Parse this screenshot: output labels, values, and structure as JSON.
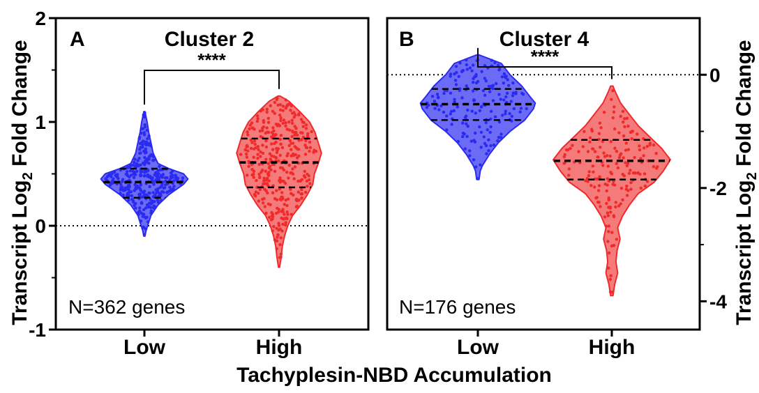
{
  "figure": {
    "shared_xlabel": "Tachyplesin-NBD Accumulation",
    "left_ylabel_main": "Transcript Log",
    "left_ylabel_sub": "2",
    "left_ylabel_tail": " Fold Change",
    "right_ylabel_main": "Transcript Log",
    "right_ylabel_sub": "2",
    "right_ylabel_tail": " Fold Change"
  },
  "colors": {
    "low": "#2a2af0",
    "low_fill": "#6b6bf5",
    "high": "#f02a2a",
    "high_fill": "#f57a7a"
  },
  "chart_data": [
    {
      "type": "violin",
      "panel_letter": "A",
      "title": "Cluster 2",
      "significance": "****",
      "annotation": "N=362 genes",
      "categories": [
        "Low",
        "High"
      ],
      "ylim": [
        -1,
        2
      ],
      "yticks": [
        -1,
        0,
        1,
        2
      ],
      "yaxis_side": "left",
      "reference_line": 0,
      "series": [
        {
          "name": "Low",
          "color_key": "low",
          "n_points": 362,
          "q1": 0.27,
          "median": 0.42,
          "q3": 0.55,
          "profile": [
            [
              -0.1,
              0.01
            ],
            [
              -0.05,
              0.03
            ],
            [
              0.0,
              0.06
            ],
            [
              0.1,
              0.12
            ],
            [
              0.2,
              0.25
            ],
            [
              0.3,
              0.45
            ],
            [
              0.4,
              0.72
            ],
            [
              0.45,
              0.8
            ],
            [
              0.5,
              0.72
            ],
            [
              0.55,
              0.45
            ],
            [
              0.6,
              0.25
            ],
            [
              0.7,
              0.16
            ],
            [
              0.8,
              0.12
            ],
            [
              0.9,
              0.08
            ],
            [
              1.0,
              0.05
            ],
            [
              1.1,
              0.01
            ]
          ]
        },
        {
          "name": "High",
          "color_key": "high",
          "n_points": 362,
          "q1": 0.37,
          "median": 0.61,
          "q3": 0.84,
          "profile": [
            [
              -0.4,
              0.01
            ],
            [
              -0.3,
              0.04
            ],
            [
              -0.2,
              0.06
            ],
            [
              -0.1,
              0.1
            ],
            [
              0.0,
              0.16
            ],
            [
              0.1,
              0.25
            ],
            [
              0.2,
              0.4
            ],
            [
              0.3,
              0.52
            ],
            [
              0.4,
              0.62
            ],
            [
              0.5,
              0.65
            ],
            [
              0.6,
              0.72
            ],
            [
              0.7,
              0.78
            ],
            [
              0.8,
              0.72
            ],
            [
              0.9,
              0.66
            ],
            [
              1.0,
              0.56
            ],
            [
              1.1,
              0.38
            ],
            [
              1.2,
              0.18
            ],
            [
              1.25,
              0.02
            ]
          ]
        }
      ]
    },
    {
      "type": "violin",
      "panel_letter": "B",
      "title": "Cluster 4",
      "significance": "****",
      "annotation": "N=176 genes",
      "categories": [
        "Low",
        "High"
      ],
      "ylim": [
        -4.5,
        1
      ],
      "yticks": [
        -4,
        -2,
        0,
        2
      ],
      "yaxis_side": "right",
      "reference_line": 0,
      "series": [
        {
          "name": "Low",
          "color_key": "low",
          "n_points": 176,
          "q1": -0.8,
          "median": -0.52,
          "q3": -0.25,
          "profile": [
            [
              -1.85,
              0.02
            ],
            [
              -1.7,
              0.04
            ],
            [
              -1.6,
              0.08
            ],
            [
              -1.4,
              0.2
            ],
            [
              -1.2,
              0.35
            ],
            [
              -1.0,
              0.55
            ],
            [
              -0.8,
              0.8
            ],
            [
              -0.6,
              0.95
            ],
            [
              -0.5,
              0.98
            ],
            [
              -0.4,
              0.9
            ],
            [
              -0.2,
              0.75
            ],
            [
              0.0,
              0.55
            ],
            [
              0.2,
              0.4
            ],
            [
              0.3,
              0.15
            ],
            [
              0.35,
              0.02
            ]
          ]
        },
        {
          "name": "High",
          "color_key": "high",
          "n_points": 176,
          "q1": -1.85,
          "median": -1.52,
          "q3": -1.15,
          "profile": [
            [
              -3.9,
              0.02
            ],
            [
              -3.7,
              0.05
            ],
            [
              -3.5,
              0.1
            ],
            [
              -3.3,
              0.07
            ],
            [
              -3.1,
              0.09
            ],
            [
              -2.9,
              0.14
            ],
            [
              -2.7,
              0.1
            ],
            [
              -2.5,
              0.18
            ],
            [
              -2.3,
              0.3
            ],
            [
              -2.1,
              0.45
            ],
            [
              -1.9,
              0.72
            ],
            [
              -1.7,
              0.88
            ],
            [
              -1.5,
              1.0
            ],
            [
              -1.3,
              0.85
            ],
            [
              -1.1,
              0.65
            ],
            [
              -0.9,
              0.45
            ],
            [
              -0.7,
              0.3
            ],
            [
              -0.5,
              0.15
            ],
            [
              -0.3,
              0.06
            ],
            [
              -0.2,
              0.02
            ]
          ]
        }
      ]
    }
  ]
}
